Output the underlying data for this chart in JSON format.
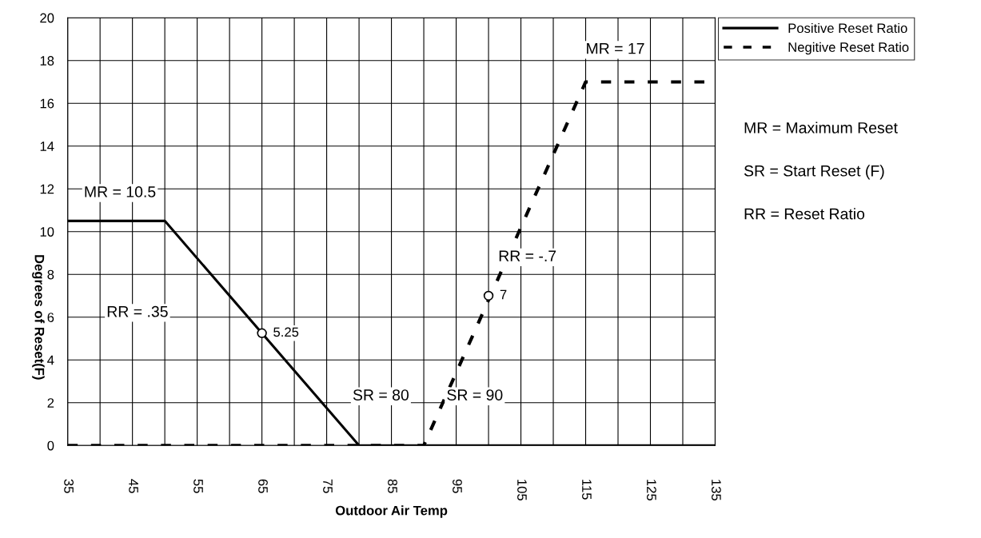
{
  "chart_data": {
    "type": "line",
    "xlabel": "Outdoor Air Temp",
    "ylabel": "Degrees of Reset(F)",
    "xlim": [
      35,
      135
    ],
    "xticks": [
      35,
      45,
      55,
      65,
      75,
      85,
      95,
      105,
      115,
      125,
      135
    ],
    "ylim": [
      0,
      20
    ],
    "yticks": [
      0,
      2,
      4,
      6,
      8,
      10,
      12,
      14,
      16,
      18,
      20
    ],
    "grid": true,
    "legend": "top right",
    "marker": "none",
    "series": [
      {
        "name": "Positive Reset Ratio",
        "color": "#000000",
        "line_style": "solid",
        "x": [
          35,
          50,
          80,
          135
        ],
        "values": [
          10.5,
          10.5,
          0,
          0
        ]
      },
      {
        "name": "Negitive Reset Ratio",
        "color": "#000000",
        "line_style": "dashed",
        "x": [
          35,
          90,
          115,
          135
        ],
        "values": [
          0,
          0,
          17,
          17
        ]
      },
      {
        "type": "scatter",
        "marker": "circle",
        "color": "#000000",
        "x": [
          65,
          100
        ],
        "values": [
          5.25,
          7
        ]
      }
    ],
    "annotations": [
      "MR = 10.5",
      "RR = .35",
      {
        "text": "5.25",
        "x": 65,
        "y": 5.25
      },
      "SR = 80",
      "SR = 90",
      {
        "text": "7",
        "x": 100,
        "y": 7
      },
      "RR = -.7",
      "MR = 17",
      "MR = Maximum Reset",
      "SR = Start Reset (F)",
      "RR = Reset Ratio"
    ]
  }
}
